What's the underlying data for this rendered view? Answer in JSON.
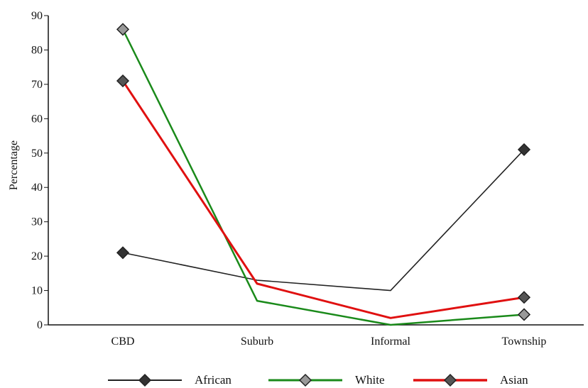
{
  "chart_data": {
    "type": "line",
    "title": "",
    "xlabel": "",
    "ylabel": "Percentage",
    "categories": [
      "CBD",
      "Suburb",
      "Informal",
      "Township"
    ],
    "ylim": [
      0,
      90
    ],
    "yticks": [
      0,
      10,
      20,
      30,
      40,
      50,
      60,
      70,
      80,
      90
    ],
    "grid": false,
    "legend_position": "bottom",
    "series": [
      {
        "name": "African",
        "values": [
          21,
          13,
          10,
          51
        ],
        "color": "#222222",
        "marker_fill": "#333333",
        "markers": [
          true,
          false,
          false,
          true
        ]
      },
      {
        "name": "White",
        "values": [
          86,
          7,
          0,
          3
        ],
        "color": "#1a8a1a",
        "marker_fill": "#999999",
        "markers": [
          true,
          false,
          false,
          true
        ]
      },
      {
        "name": "Asian",
        "values": [
          71,
          12,
          2,
          8
        ],
        "color": "#e01010",
        "marker_fill": "#555555",
        "markers": [
          true,
          false,
          false,
          true
        ]
      }
    ]
  }
}
